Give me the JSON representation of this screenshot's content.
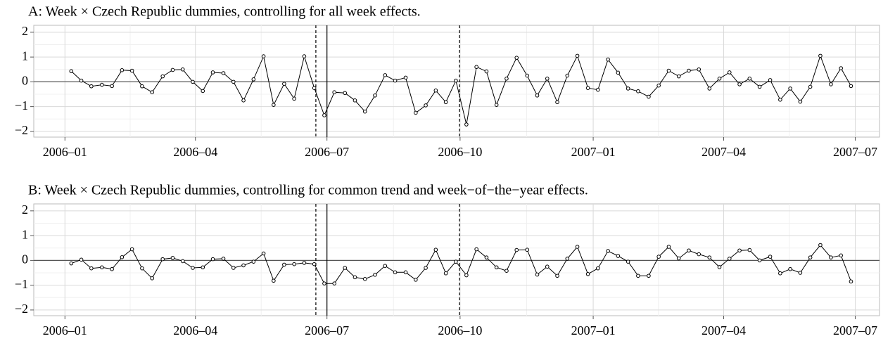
{
  "chart_data": [
    {
      "type": "line",
      "title": "A: Week × Czech Republic dummies, controlling for all week effects.",
      "x": [
        2006.012,
        2006.031,
        2006.05,
        2006.07,
        2006.089,
        2006.108,
        2006.127,
        2006.146,
        2006.165,
        2006.185,
        2006.204,
        2006.223,
        2006.242,
        2006.261,
        2006.28,
        2006.3,
        2006.319,
        2006.338,
        2006.357,
        2006.376,
        2006.395,
        2006.415,
        2006.434,
        2006.453,
        2006.472,
        2006.491,
        2006.51,
        2006.53,
        2006.549,
        2006.568,
        2006.587,
        2006.606,
        2006.625,
        2006.645,
        2006.664,
        2006.683,
        2006.702,
        2006.721,
        2006.74,
        2006.76,
        2006.779,
        2006.798,
        2006.817,
        2006.836,
        2006.855,
        2006.875,
        2006.894,
        2006.913,
        2006.932,
        2006.951,
        2006.97,
        2006.99,
        2007.009,
        2007.028,
        2007.047,
        2007.066,
        2007.085,
        2007.105,
        2007.124,
        2007.143,
        2007.162,
        2007.181,
        2007.2,
        2007.22,
        2007.239,
        2007.258,
        2007.277,
        2007.296,
        2007.315,
        2007.335,
        2007.354,
        2007.373,
        2007.392,
        2007.411,
        2007.43,
        2007.45,
        2007.469,
        2007.488
      ],
      "series": [
        {
          "color": "#000000",
          "values": [
            0.43,
            0.05,
            -0.18,
            -0.12,
            -0.17,
            0.47,
            0.45,
            -0.18,
            -0.42,
            0.22,
            0.48,
            0.5,
            0.0,
            -0.37,
            0.38,
            0.35,
            0.0,
            -0.75,
            0.1,
            1.03,
            -0.93,
            -0.08,
            -0.68,
            1.03,
            -0.25,
            -1.35,
            -0.42,
            -0.45,
            -0.75,
            -1.2,
            -0.55,
            0.27,
            0.05,
            0.17,
            -1.25,
            -0.95,
            -0.35,
            -0.82,
            0.05,
            -1.72,
            0.6,
            0.42,
            -0.93,
            0.13,
            0.97,
            0.25,
            -0.55,
            0.13,
            -0.82,
            0.25,
            1.05,
            -0.25,
            -0.32,
            0.9,
            0.37,
            -0.27,
            -0.38,
            -0.6,
            -0.15,
            0.45,
            0.22,
            0.45,
            0.5,
            -0.27,
            0.13,
            0.38,
            -0.1,
            0.13,
            -0.2,
            0.07,
            -0.72,
            -0.27,
            -0.8,
            -0.2,
            1.05,
            -0.1,
            0.55,
            -0.17
          ]
        }
      ],
      "xlim": [
        2005.941,
        2007.542
      ],
      "xticks": [
        {
          "value": 2006.0,
          "label": "2006–01"
        },
        {
          "value": 2006.247,
          "label": "2006–04"
        },
        {
          "value": 2006.496,
          "label": "2006–07"
        },
        {
          "value": 2006.748,
          "label": "2006–10"
        },
        {
          "value": 2007.0,
          "label": "2007–01"
        },
        {
          "value": 2007.247,
          "label": "2007–04"
        },
        {
          "value": 2007.496,
          "label": "2007–07"
        }
      ],
      "ylim": [
        -2.23,
        2.28
      ],
      "yticks": [
        {
          "value": -2,
          "label": "−2"
        },
        {
          "value": -1,
          "label": "−1"
        },
        0,
        1,
        2
      ],
      "hline": 0,
      "vlines": [
        {
          "value": 2006.475,
          "dashed": true
        },
        {
          "value": 2006.496,
          "dashed": false
        },
        {
          "value": 2006.747,
          "dashed": true
        }
      ],
      "grid": true
    },
    {
      "type": "line",
      "title": "B: Week × Czech Republic dummies, controlling for common trend and week−of−the−year effects.",
      "x": [
        2006.012,
        2006.031,
        2006.05,
        2006.07,
        2006.089,
        2006.108,
        2006.127,
        2006.146,
        2006.165,
        2006.185,
        2006.204,
        2006.223,
        2006.242,
        2006.261,
        2006.28,
        2006.3,
        2006.319,
        2006.338,
        2006.357,
        2006.376,
        2006.395,
        2006.415,
        2006.434,
        2006.453,
        2006.472,
        2006.491,
        2006.51,
        2006.53,
        2006.549,
        2006.568,
        2006.587,
        2006.606,
        2006.625,
        2006.645,
        2006.664,
        2006.683,
        2006.702,
        2006.721,
        2006.74,
        2006.76,
        2006.779,
        2006.798,
        2006.817,
        2006.836,
        2006.855,
        2006.875,
        2006.894,
        2006.913,
        2006.932,
        2006.951,
        2006.97,
        2006.99,
        2007.009,
        2007.028,
        2007.047,
        2007.066,
        2007.085,
        2007.105,
        2007.124,
        2007.143,
        2007.162,
        2007.181,
        2007.2,
        2007.22,
        2007.239,
        2007.258,
        2007.277,
        2007.296,
        2007.315,
        2007.335,
        2007.354,
        2007.373,
        2007.392,
        2007.411,
        2007.43,
        2007.45,
        2007.469,
        2007.488
      ],
      "series": [
        {
          "color": "#000000",
          "values": [
            -0.12,
            0.03,
            -0.32,
            -0.28,
            -0.35,
            0.13,
            0.45,
            -0.32,
            -0.72,
            0.05,
            0.1,
            -0.03,
            -0.3,
            -0.28,
            0.05,
            0.07,
            -0.3,
            -0.2,
            -0.05,
            0.28,
            -0.82,
            -0.17,
            -0.15,
            -0.1,
            -0.15,
            -0.93,
            -0.93,
            -0.3,
            -0.68,
            -0.75,
            -0.58,
            -0.22,
            -0.48,
            -0.48,
            -0.78,
            -0.3,
            0.43,
            -0.52,
            -0.05,
            -0.6,
            0.45,
            0.12,
            -0.28,
            -0.42,
            0.42,
            0.43,
            -0.57,
            -0.25,
            -0.62,
            0.07,
            0.55,
            -0.55,
            -0.32,
            0.38,
            0.18,
            -0.05,
            -0.62,
            -0.62,
            0.15,
            0.55,
            0.08,
            0.4,
            0.25,
            0.12,
            -0.27,
            0.07,
            0.4,
            0.42,
            0.0,
            0.15,
            -0.52,
            -0.35,
            -0.5,
            0.12,
            0.62,
            0.12,
            0.2,
            -0.85
          ]
        }
      ],
      "xlim": [
        2005.941,
        2007.542
      ],
      "xticks": [
        {
          "value": 2006.0,
          "label": "2006–01"
        },
        {
          "value": 2006.247,
          "label": "2006–04"
        },
        {
          "value": 2006.496,
          "label": "2006–07"
        },
        {
          "value": 2006.748,
          "label": "2006–10"
        },
        {
          "value": 2007.0,
          "label": "2007–01"
        },
        {
          "value": 2007.247,
          "label": "2007–04"
        },
        {
          "value": 2007.496,
          "label": "2007–07"
        }
      ],
      "ylim": [
        -2.23,
        2.28
      ],
      "yticks": [
        {
          "value": -2,
          "label": "−2"
        },
        {
          "value": -1,
          "label": "−1"
        },
        0,
        1,
        2
      ],
      "hline": 0,
      "vlines": [
        {
          "value": 2006.475,
          "dashed": true
        },
        {
          "value": 2006.496,
          "dashed": false
        },
        {
          "value": 2006.747,
          "dashed": true
        }
      ],
      "grid": true
    }
  ]
}
